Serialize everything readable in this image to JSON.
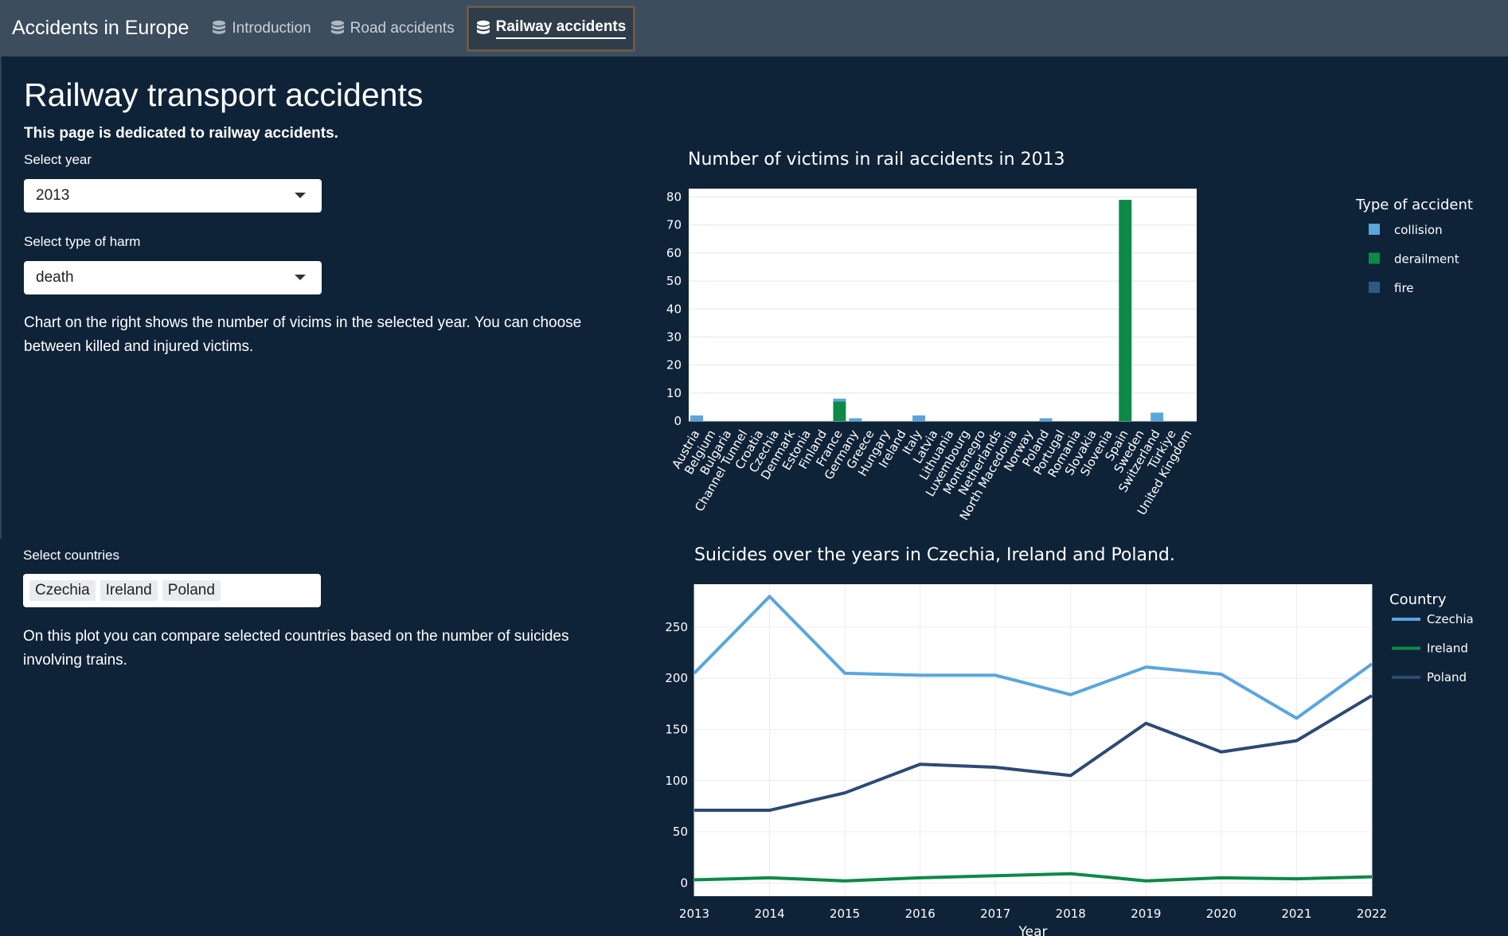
{
  "app_title": "Accidents in Europe",
  "nav": {
    "tabs": [
      {
        "label": "Introduction",
        "icon": "database-icon",
        "active": false
      },
      {
        "label": "Road accidents",
        "icon": "database-icon",
        "active": false
      },
      {
        "label": "Railway accidents",
        "icon": "database-icon",
        "active": true
      }
    ]
  },
  "page": {
    "title": "Railway transport accidents",
    "lead": "This page is dedicated to railway accidents."
  },
  "controls": {
    "year_label": "Select year",
    "year_value": "2013",
    "harm_label": "Select type of harm",
    "harm_value": "death",
    "description1": "Chart on the right shows the number of vicims in the selected year. You can choose between killed and injured victims.",
    "countries_label": "Select countries",
    "countries": [
      "Czechia",
      "Ireland",
      "Poland"
    ],
    "description2": "On this plot you can compare selected countries based on the number of suicides involving trains."
  },
  "colors": {
    "collision": "#5aa5dd",
    "derailment": "#0c8a47",
    "fire": "#2c5a84",
    "czechia": "#5aa5dd",
    "ireland": "#0c8a47",
    "poland": "#2c4a74",
    "background": "#0f2338",
    "navbar": "#3c4d5e"
  },
  "chart_data": [
    {
      "type": "bar",
      "title": "Number of victims in rail accidents in 2013",
      "legend_title": "Type of accident",
      "legend_position": "right",
      "ylim": [
        0,
        83
      ],
      "yticks": [
        0,
        10,
        20,
        30,
        40,
        50,
        60,
        70,
        80
      ],
      "categories": [
        "Austria",
        "Belgium",
        "Bulgaria",
        "Channel Tunnel",
        "Croatia",
        "Czechia",
        "Denmark",
        "Estonia",
        "Finland",
        "France",
        "Germany",
        "Greece",
        "Hungary",
        "Ireland",
        "Italy",
        "Latvia",
        "Lithuania",
        "Luxembourg",
        "Montenegro",
        "Netherlands",
        "North Macedonia",
        "Norway",
        "Poland",
        "Portugal",
        "Romania",
        "Slovakia",
        "Slovenia",
        "Spain",
        "Sweden",
        "Switzerland",
        "Türkiye",
        "United Kingdom"
      ],
      "series": [
        {
          "name": "collision",
          "values": [
            2,
            0,
            0,
            0,
            0,
            0,
            0,
            0,
            0,
            1,
            1,
            0,
            0,
            0,
            2,
            0,
            0,
            0,
            0,
            0,
            0,
            0,
            1,
            0,
            0,
            0,
            0,
            0,
            0,
            3,
            0,
            0
          ]
        },
        {
          "name": "derailment",
          "values": [
            0,
            0,
            0,
            0,
            0,
            0,
            0,
            0,
            0,
            7,
            0,
            0,
            0,
            0,
            0,
            0,
            0,
            0,
            0,
            0,
            0,
            0,
            0,
            0,
            0,
            0,
            0,
            79,
            0,
            0,
            0,
            0
          ]
        },
        {
          "name": "fire",
          "values": [
            0,
            0,
            0,
            0,
            0,
            0,
            0,
            0,
            0,
            0,
            0,
            0,
            0,
            0,
            0,
            0,
            0,
            0,
            0,
            0,
            0,
            0,
            0,
            0,
            0,
            0,
            0,
            0,
            0,
            0,
            0,
            0
          ]
        }
      ]
    },
    {
      "type": "line",
      "title": "Suicides over the years in Czechia, Ireland and Poland.",
      "legend_title": "Country",
      "legend_position": "right",
      "xlabel": "Year",
      "x": [
        2013,
        2014,
        2015,
        2016,
        2017,
        2018,
        2019,
        2020,
        2021,
        2022
      ],
      "ylim": [
        -13,
        292
      ],
      "yticks": [
        0,
        50,
        100,
        150,
        200,
        250
      ],
      "series": [
        {
          "name": "Czechia",
          "values": [
            205,
            280,
            205,
            203,
            203,
            184,
            211,
            204,
            161,
            214
          ]
        },
        {
          "name": "Ireland",
          "values": [
            3,
            5,
            2,
            5,
            7,
            9,
            2,
            5,
            4,
            6
          ]
        },
        {
          "name": "Poland",
          "values": [
            71,
            71,
            88,
            116,
            113,
            105,
            156,
            128,
            139,
            183
          ]
        }
      ]
    }
  ]
}
